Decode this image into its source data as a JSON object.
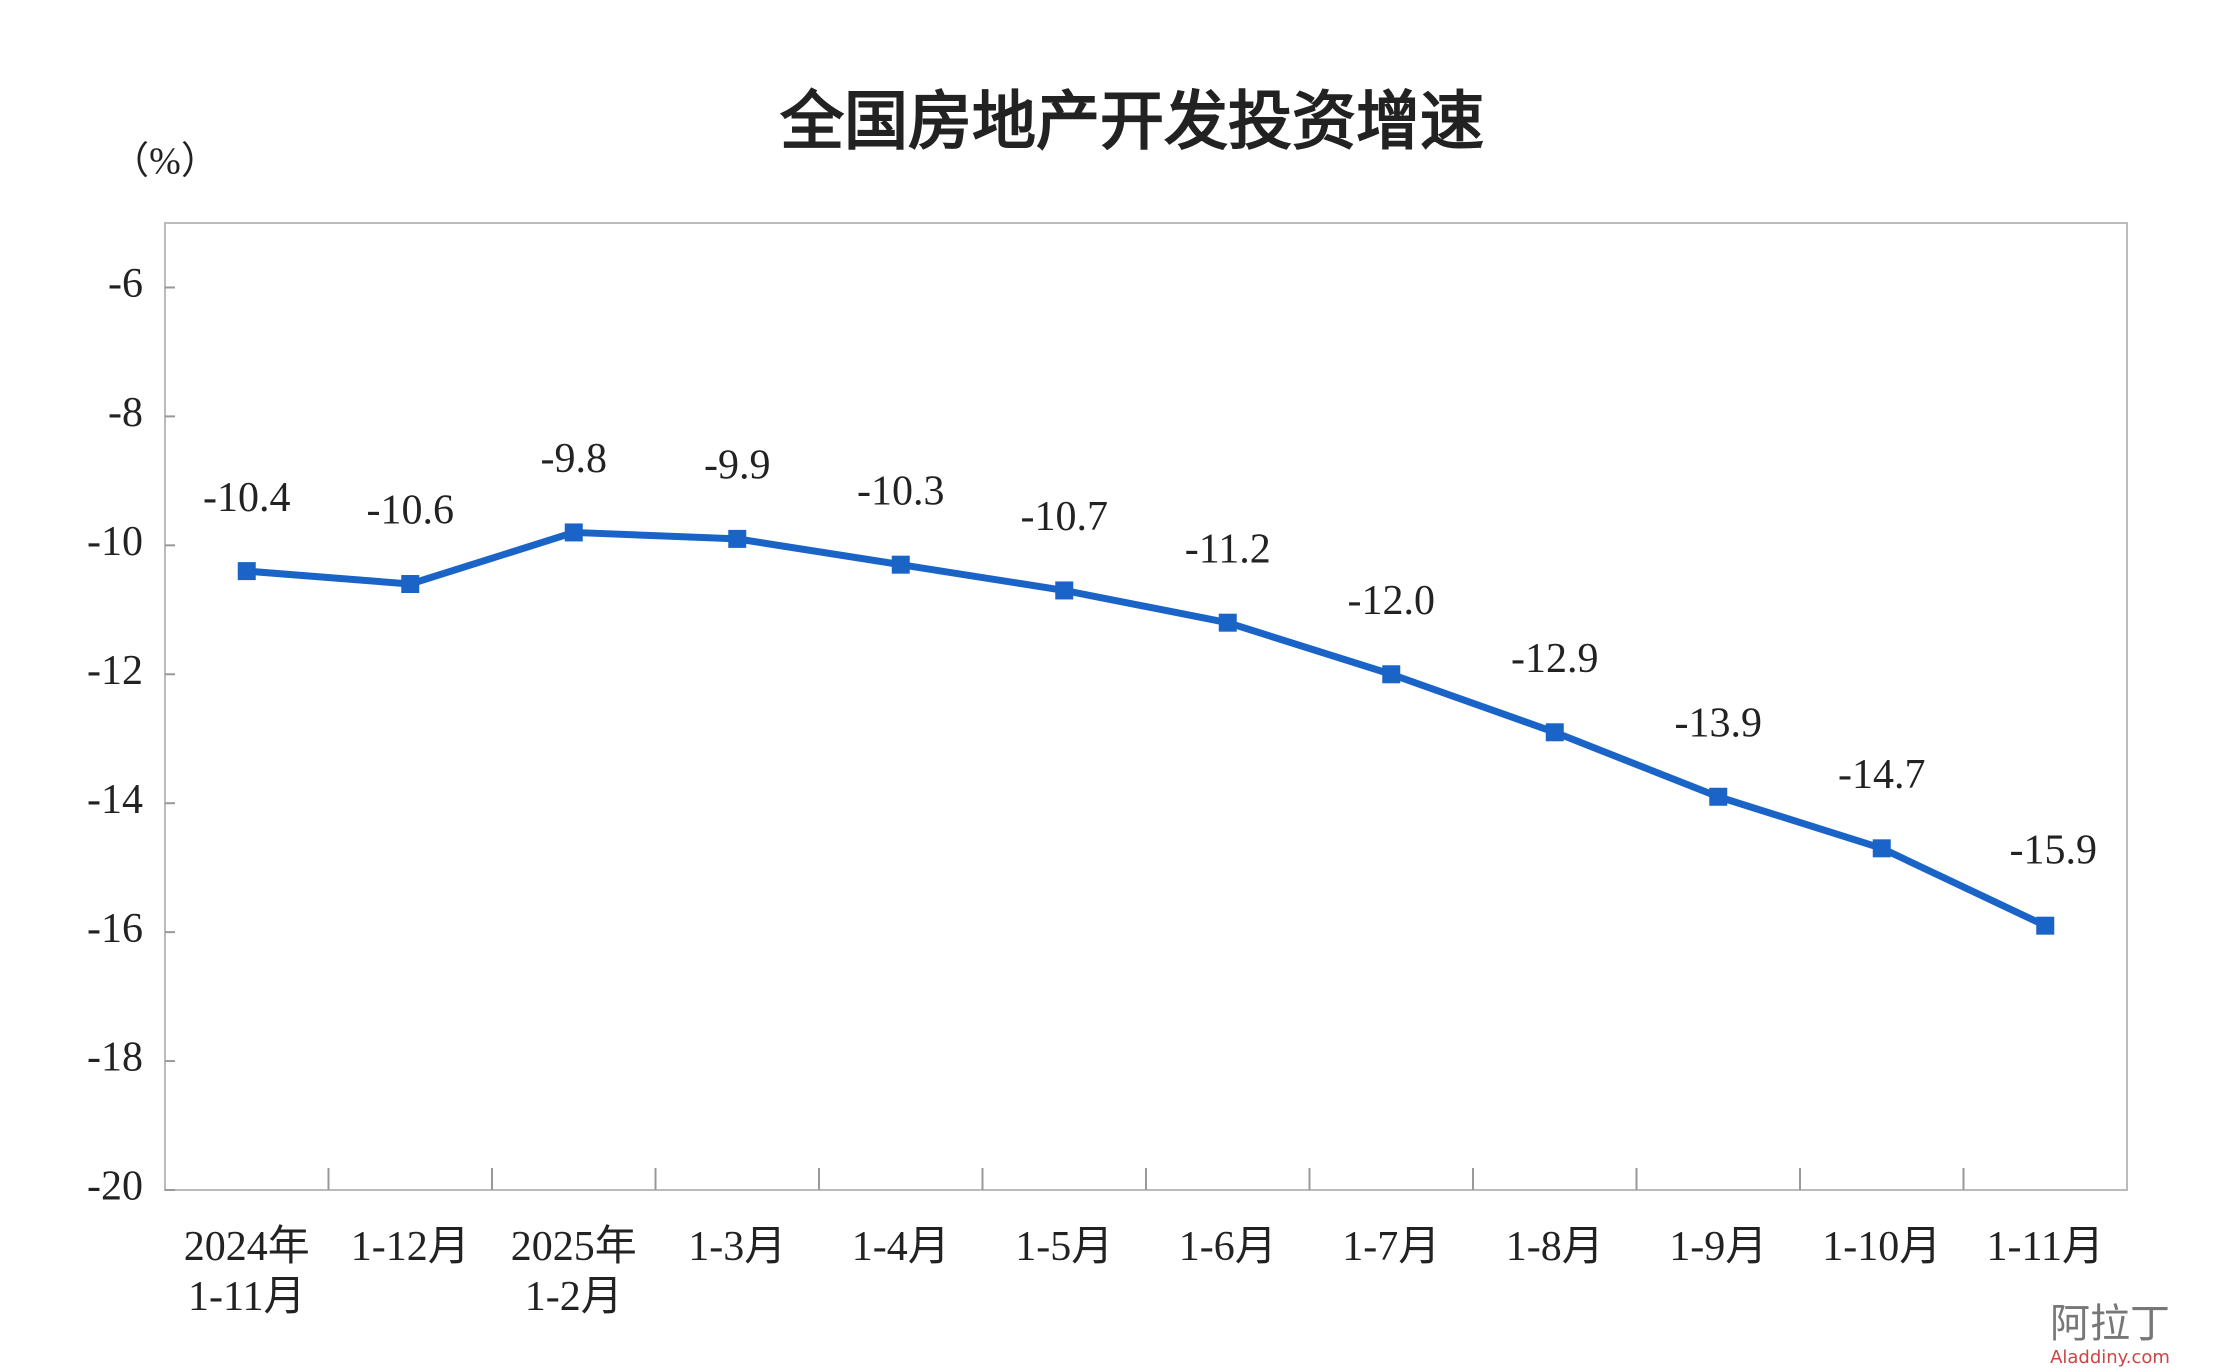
{
  "chart_data": {
    "type": "line",
    "title": "全国房地产开发投资增速",
    "y_label": "（%）",
    "categories": [
      "2024年\n1-11月",
      "1-12月",
      "2025年\n1-2月",
      "1-3月",
      "1-4月",
      "1-5月",
      "1-6月",
      "1-7月",
      "1-8月",
      "1-9月",
      "1-10月",
      "1-11月"
    ],
    "series": [
      {
        "name": "全国房地产开发投资增速",
        "color": "#1a64c8",
        "values": [
          -10.4,
          -10.6,
          -9.8,
          -9.9,
          -10.3,
          -10.7,
          -11.2,
          -12.0,
          -12.9,
          -13.9,
          -14.7,
          -15.9
        ],
        "value_labels": [
          "-10.4",
          "-10.6",
          "-9.8",
          "-9.9",
          "-10.3",
          "-10.7",
          "-11.2",
          "-12.0",
          "-12.9",
          "-13.9",
          "-14.7",
          "-15.9"
        ]
      }
    ],
    "ylim": [
      -20,
      -5
    ],
    "yticks": [
      -20,
      -18,
      -16,
      -14,
      -12,
      -10,
      -8,
      -6
    ],
    "watermark": {
      "brand": "阿拉丁",
      "site": "Aladdiny.com"
    }
  }
}
